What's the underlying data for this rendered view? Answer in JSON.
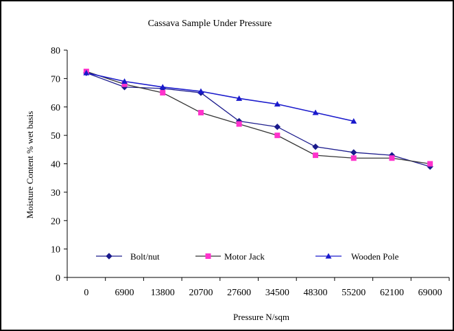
{
  "chart_data": {
    "type": "line",
    "title": "Cassava Sample Under Pressure",
    "xlabel": "Pressure N/sqm",
    "ylabel": "Moisture Content % wet basis",
    "categories": [
      "0",
      "6900",
      "13800",
      "20700",
      "27600",
      "34500",
      "48300",
      "55200",
      "62100",
      "69000"
    ],
    "ylim": [
      0,
      80
    ],
    "yticks": [
      "0",
      "10",
      "20",
      "30",
      "40",
      "50",
      "60",
      "70",
      "80"
    ],
    "grid": false,
    "legend_position": "bottom-inside",
    "series": [
      {
        "name": "Bolt/nut",
        "marker": "diamond",
        "color": "#1a1a8c",
        "line_color": "#1a1a8c",
        "values": [
          72,
          67,
          66.5,
          65,
          55,
          53,
          46,
          44,
          43,
          39
        ]
      },
      {
        "name": "Motor Jack",
        "marker": "square",
        "color": "#ff33cc",
        "line_color": "#333333",
        "values": [
          72.5,
          68,
          65,
          58,
          54,
          50,
          43,
          42,
          42,
          40
        ]
      },
      {
        "name": "Wooden Pole",
        "marker": "triangle",
        "color": "#1a1acc",
        "line_color": "#1a1acc",
        "values": [
          72,
          69,
          67,
          65.5,
          63,
          61,
          58,
          55,
          null,
          null
        ]
      }
    ]
  }
}
